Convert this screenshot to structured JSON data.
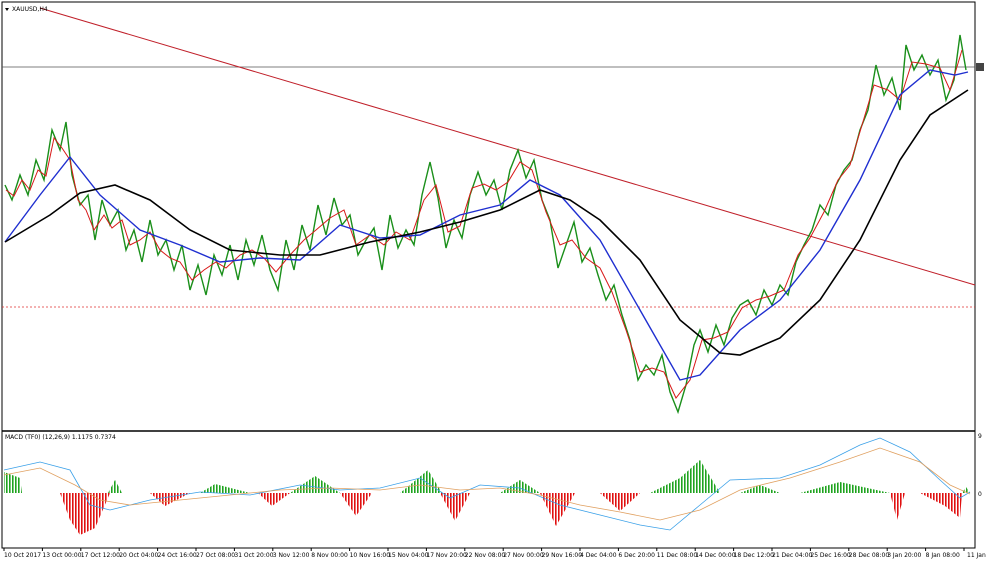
{
  "window": {
    "symbol": "XAUUSD,H4",
    "indicator": "MACD (TF0) (12,26,9) 1.1175 0.7374",
    "macd_axis": [
      "9",
      "0"
    ],
    "dates": [
      "10 Oct 2017",
      "13 Oct 00:00",
      "17 Oct 12:00",
      "20 Oct 04:00",
      "24 Oct 16:00",
      "27 Oct 08:00",
      "31 Oct 20:00",
      "3 Nov 12:00",
      "8 Nov 00:00",
      "10 Nov 16:00",
      "15 Nov 04:00",
      "17 Nov 20:00",
      "22 Nov 08:00",
      "27 Nov 00:00",
      "29 Nov 16:00",
      "4 Dec 04:00",
      "6 Dec 20:00",
      "11 Dec 08:00",
      "14 Dec 00:00",
      "18 Dec 12:00",
      "21 Dec 04:00",
      "25 Dec 16:00",
      "28 Dec 08:00",
      "3 Jan 20:00",
      "8 Jan 08:00",
      "11 Jan"
    ]
  }
}
